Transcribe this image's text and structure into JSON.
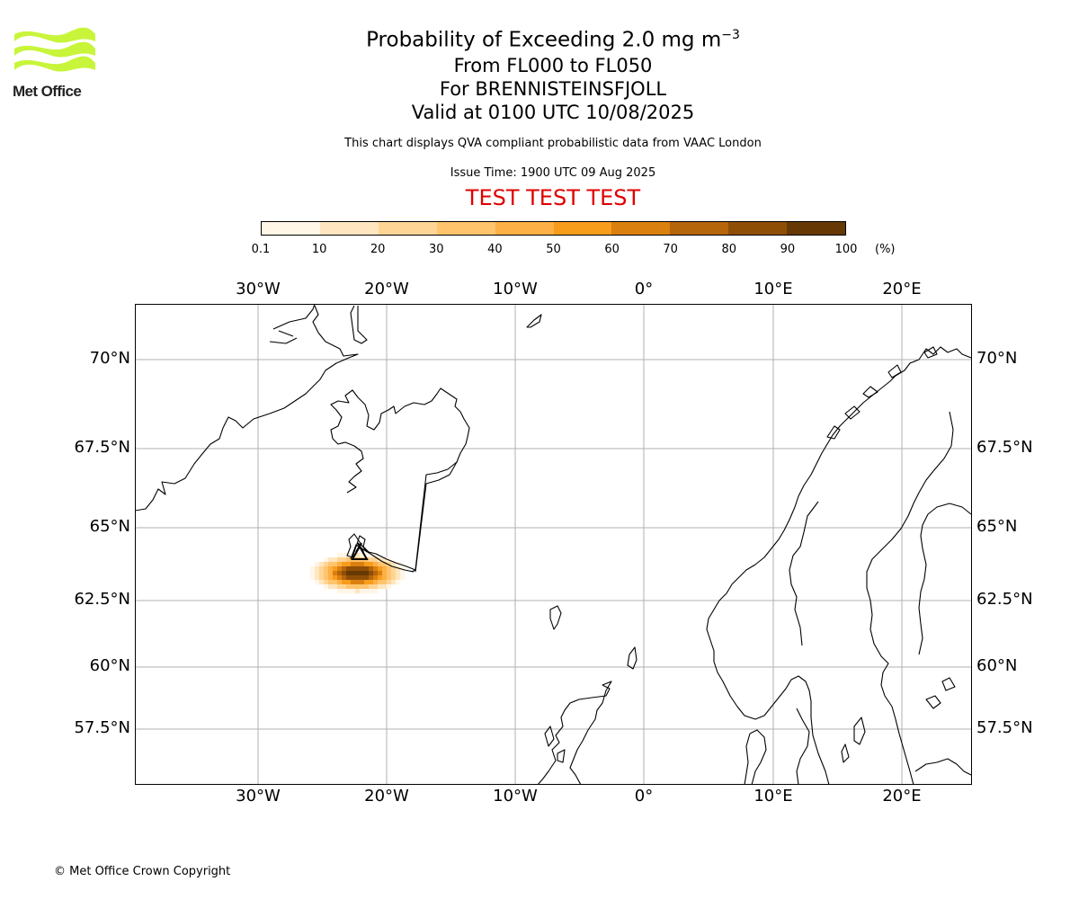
{
  "logo": {
    "text": "Met Office",
    "color": "#c8f53a"
  },
  "title": {
    "main": "Probability of Exceeding 2.0 mg m",
    "main_superscript": "−3",
    "levels": "From FL000 to FL050",
    "volcano": "For BRENNISTEINSFJOLL",
    "valid": "Valid at 0100 UTC 10/08/2025",
    "subtitle": "This chart displays QVA compliant probabilistic data from VAAC London",
    "issue": "Issue Time: 1900 UTC 09 Aug 2025",
    "test": "TEST TEST TEST"
  },
  "colorbar": {
    "labels": [
      "0.1",
      "10",
      "20",
      "30",
      "40",
      "50",
      "60",
      "70",
      "80",
      "90",
      "100"
    ],
    "colors": [
      "#fff6e8",
      "#ffe6c0",
      "#ffd596",
      "#ffc46c",
      "#fdb045",
      "#f89c1c",
      "#d9800e",
      "#b5650a",
      "#8f4e06",
      "#663803"
    ],
    "unit": "(%)"
  },
  "map_axes": {
    "lon_labels": [
      "30°W",
      "20°W",
      "10°W",
      "0°",
      "10°E",
      "20°E"
    ],
    "lat_labels": [
      "70°N",
      "67.5°N",
      "65°N",
      "62.5°N",
      "60°N",
      "57.5°N"
    ]
  },
  "copyright": "© Met Office Crown Copyright"
}
